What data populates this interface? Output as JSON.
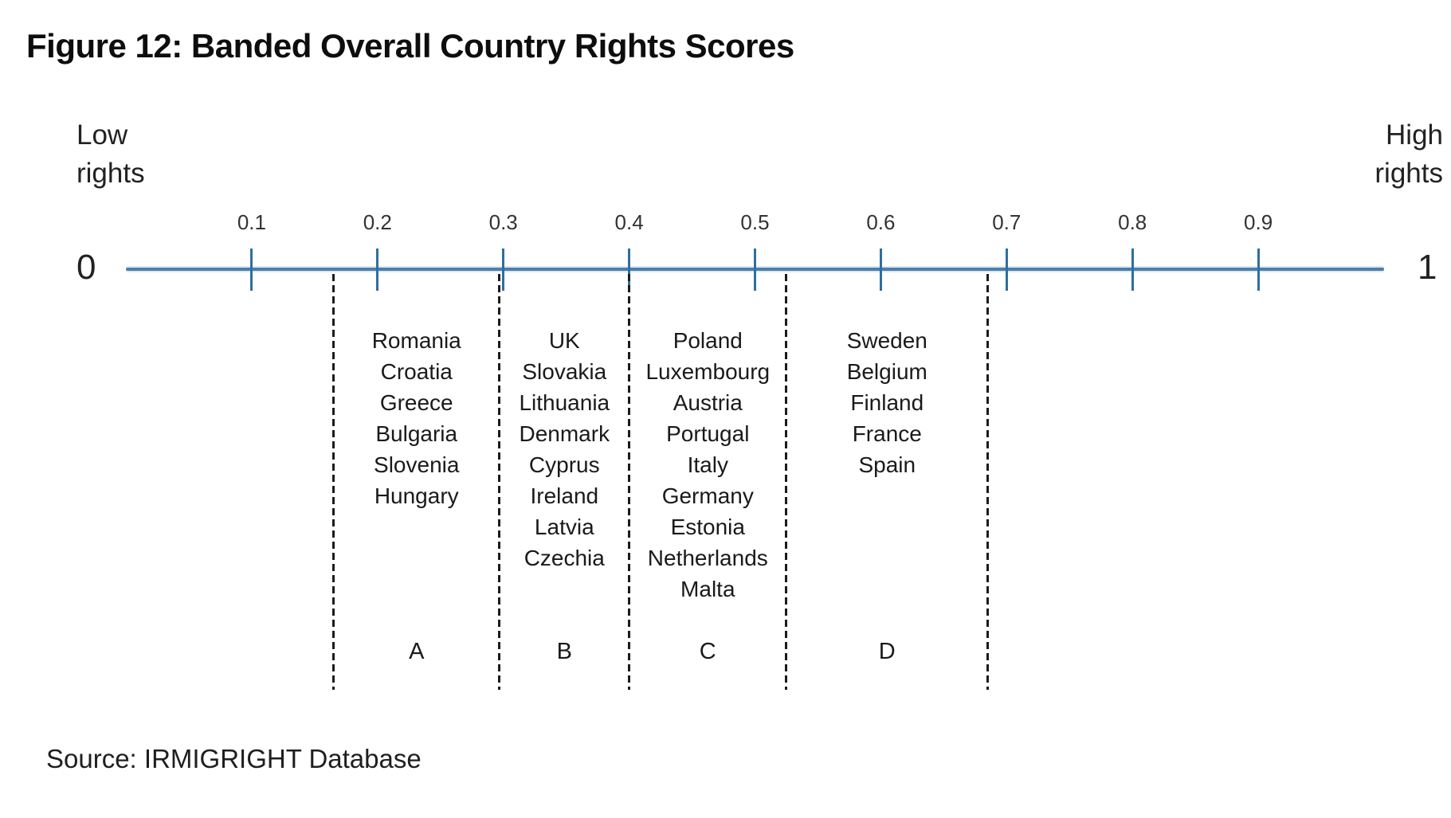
{
  "figure": {
    "title": "Figure 12: Banded Overall Country Rights Scores",
    "source": "Source: IRMIGRIGHT Database"
  },
  "axis": {
    "low_lines": [
      "Low",
      "rights"
    ],
    "high_lines": [
      "High",
      "rights"
    ],
    "origin_label": "0",
    "end_label": "1"
  },
  "chart_data": {
    "type": "number_line_bands",
    "title": "Figure 12: Banded Overall Country Rights Scores",
    "axis_range": [
      0,
      1
    ],
    "axis_min_label": "0",
    "axis_max_label": "1",
    "left_annotation": "Low rights",
    "right_annotation": "High rights",
    "ticks": [
      {
        "value": 0.1,
        "label": "0.1"
      },
      {
        "value": 0.2,
        "label": "0.2"
      },
      {
        "value": 0.3,
        "label": "0.3"
      },
      {
        "value": 0.4,
        "label": "0.4"
      },
      {
        "value": 0.5,
        "label": "0.5"
      },
      {
        "value": 0.6,
        "label": "0.6"
      },
      {
        "value": 0.7,
        "label": "0.7"
      },
      {
        "value": 0.8,
        "label": "0.8"
      },
      {
        "value": 0.9,
        "label": "0.9"
      }
    ],
    "band_boundaries": [
      0.165,
      0.297,
      0.4,
      0.525,
      0.685
    ],
    "bands": [
      {
        "label": "A",
        "range": [
          0.165,
          0.297
        ],
        "countries": [
          "Romania",
          "Croatia",
          "Greece",
          "Bulgaria",
          "Slovenia",
          "Hungary"
        ]
      },
      {
        "label": "B",
        "range": [
          0.297,
          0.4
        ],
        "countries": [
          "UK",
          "Slovakia",
          "Lithuania",
          "Denmark",
          "Cyprus",
          "Ireland",
          "Latvia",
          "Czechia"
        ]
      },
      {
        "label": "C",
        "range": [
          0.4,
          0.525
        ],
        "countries": [
          "Poland",
          "Luxembourg",
          "Austria",
          "Portugal",
          "Italy",
          "Germany",
          "Estonia",
          "Netherlands",
          "Malta"
        ]
      },
      {
        "label": "D",
        "range": [
          0.525,
          0.685
        ],
        "countries": [
          "Sweden",
          "Belgium",
          "Finland",
          "France",
          "Spain"
        ]
      }
    ],
    "colors": {
      "axis_line": "#4d7fab",
      "axis_line_halo": "#a9c6dc",
      "tick": "#2e6f9f",
      "divider": "#1b1b1b",
      "text": "#1a1a1a"
    },
    "layout_hints": {
      "grid": false,
      "legend": false,
      "dividers_dashed": true
    }
  }
}
